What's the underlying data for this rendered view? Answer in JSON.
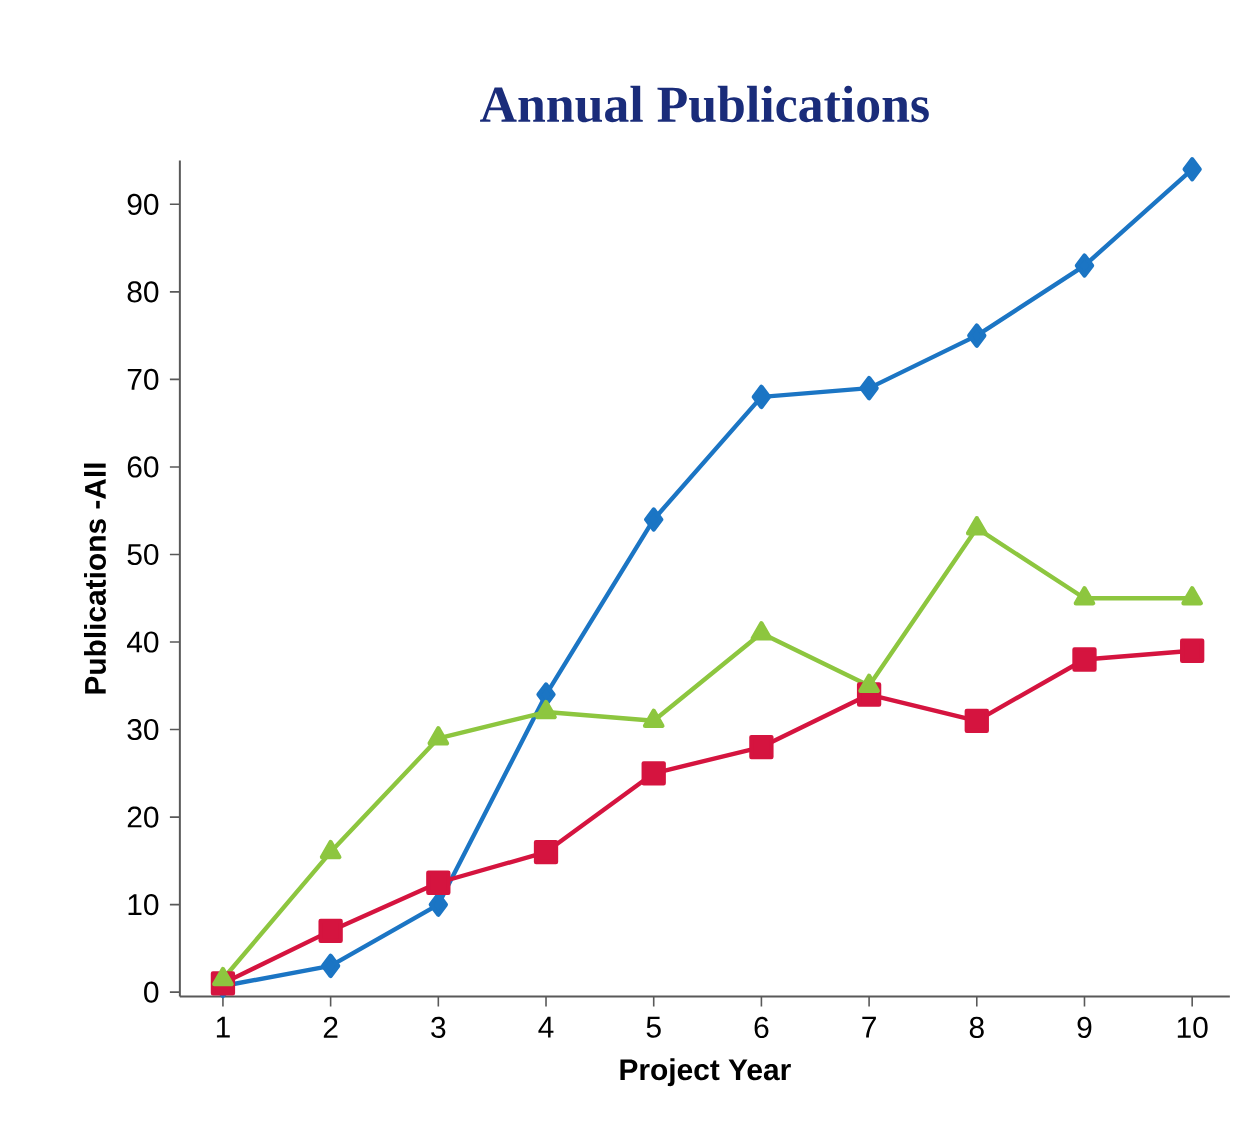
{
  "chart_data": {
    "type": "line",
    "title": "Annual Publications",
    "xlabel": "Project Year",
    "ylabel": "Publications -All",
    "x": [
      1,
      2,
      3,
      4,
      5,
      6,
      7,
      8,
      9,
      10
    ],
    "series": [
      {
        "color": "#1b75c4",
        "marker": "diamond",
        "values": [
          0.7,
          3,
          10,
          34,
          54,
          68,
          69,
          75,
          83,
          94
        ]
      },
      {
        "color": "#d5143f",
        "marker": "square",
        "values": [
          1,
          7,
          12.5,
          16,
          25,
          28,
          34,
          31,
          38,
          39
        ]
      },
      {
        "color": "#8dc63f",
        "marker": "triangle",
        "values": [
          1.5,
          16,
          29,
          32,
          31,
          41,
          35,
          53,
          45,
          45
        ]
      }
    ],
    "xlim": [
      0.6,
      10.35
    ],
    "xticks": [
      1,
      2,
      3,
      4,
      5,
      6,
      7,
      8,
      9,
      10
    ],
    "ylim": [
      -0.5,
      95
    ],
    "yticks": [
      0,
      10,
      20,
      30,
      40,
      50,
      60,
      70,
      80,
      90
    ],
    "line_style": "solid"
  }
}
